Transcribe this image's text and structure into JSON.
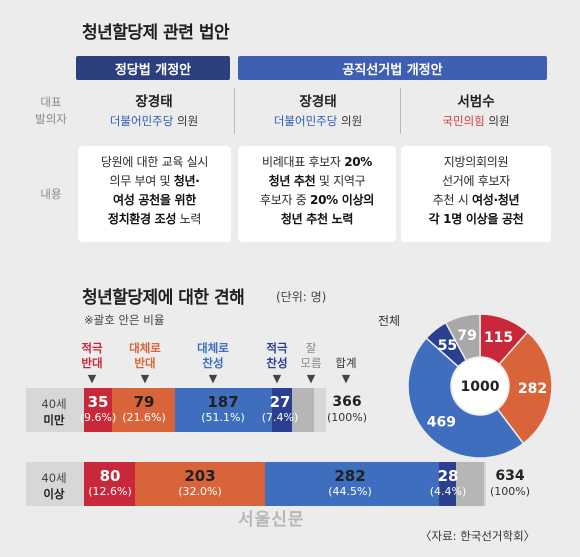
{
  "top": {
    "title": "청년할당제 관련 법안",
    "headers": [
      "정당법 개정안",
      "공직선거법 개정안"
    ],
    "row_labels": {
      "proposer": [
        "대표",
        "발의자"
      ],
      "content": "내용"
    },
    "proposers": [
      {
        "name": "장경태",
        "party": "더불어민주당",
        "suffix": " 의원"
      },
      {
        "name": "장경태",
        "party": "더불어민주당",
        "suffix": " 의원"
      },
      {
        "name": "서범수",
        "party": "국민의힘",
        "suffix": " 의원"
      }
    ],
    "contents": [
      [
        [
          {
            "t": "당원에 대한 교육 실시",
            "b": false
          }
        ],
        [
          {
            "t": "의무 부여 및 ",
            "b": false
          },
          {
            "t": "청년·",
            "b": true
          }
        ],
        [
          {
            "t": "여성 공천을 위한",
            "b": true
          }
        ],
        [
          {
            "t": "정치환경 조성",
            "b": true
          },
          {
            "t": " 노력",
            "b": false
          }
        ]
      ],
      [
        [
          {
            "t": "비례대표 후보자 ",
            "b": false
          },
          {
            "t": "20%",
            "b": true
          }
        ],
        [
          {
            "t": "청년 추천",
            "b": true
          },
          {
            "t": " 및 지역구",
            "b": false
          }
        ],
        [
          {
            "t": "후보자 중 ",
            "b": false
          },
          {
            "t": "20% 이상의",
            "b": true
          }
        ],
        [
          {
            "t": "청년 추천 노력",
            "b": true
          }
        ]
      ],
      [
        [
          {
            "t": "지방의회의원",
            "b": false
          }
        ],
        [
          {
            "t": "선거에 후보자",
            "b": false
          }
        ],
        [
          {
            "t": "추천 시 ",
            "b": false
          },
          {
            "t": "여성·청년",
            "b": true
          }
        ],
        [
          {
            "t": "각 1명 이상을 공천",
            "b": true
          }
        ]
      ]
    ]
  },
  "bottom": {
    "title": "청년할당제에 대한 견해",
    "unit": "(단위: 명)",
    "note": "※괄호 안은 비율",
    "categories": [
      {
        "lines": [
          "적극",
          "반대"
        ],
        "color": "#c8283a"
      },
      {
        "lines": [
          "대체로",
          "반대"
        ],
        "color": "#d9643a"
      },
      {
        "lines": [
          "대체로",
          "찬성"
        ],
        "color": "#3f6ebf"
      },
      {
        "lines": [
          "적극",
          "찬성"
        ],
        "color": "#2a3f8f"
      },
      {
        "lines": [
          "잘",
          "모름"
        ],
        "color": "#888888"
      },
      {
        "lines": [
          "합계"
        ],
        "color": "#333333"
      }
    ],
    "rows": [
      {
        "label": [
          "40세",
          "미만"
        ],
        "segments": [
          {
            "value": "35",
            "pct": "(9.6%)"
          },
          {
            "value": "79",
            "pct": "(21.6%)"
          },
          {
            "value": "187",
            "pct": "(51.1%)"
          },
          {
            "value": "27",
            "pct": "(7.4%)"
          }
        ],
        "total": "366",
        "total_pct": "(100%)"
      },
      {
        "label": [
          "40세",
          "이상"
        ],
        "segments": [
          {
            "value": "80",
            "pct": "(12.6%)"
          },
          {
            "value": "203",
            "pct": "(32.0%)"
          },
          {
            "value": "282",
            "pct": "(44.5%)"
          },
          {
            "value": "28",
            "pct": "(4.4%)"
          }
        ],
        "total": "634",
        "total_pct": "(100%)"
      }
    ],
    "pie": {
      "label": "전체",
      "total": "1000",
      "slices": [
        {
          "value": 115,
          "color": "#c8283a"
        },
        {
          "value": 282,
          "color": "#d9643a"
        },
        {
          "value": 469,
          "color": "#3f6ebf"
        },
        {
          "value": 55,
          "color": "#2a3f8f"
        },
        {
          "value": 79,
          "color": "#a8a8a8"
        }
      ]
    },
    "source": "〈자료: 한국선거학회〉",
    "watermark": "서울신문"
  }
}
